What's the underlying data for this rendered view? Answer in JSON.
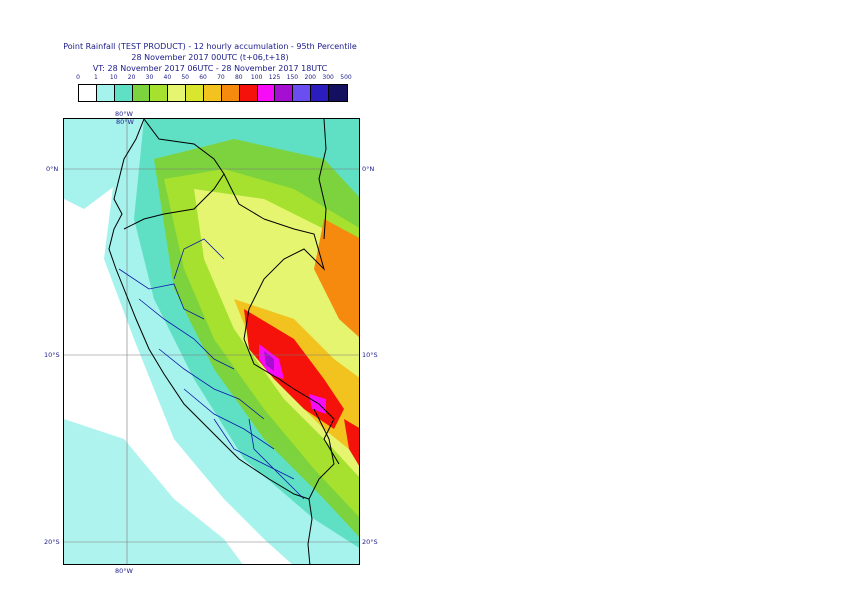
{
  "title": {
    "line1": "Point Rainfall (TEST PRODUCT) - 12 hourly accumulation - 95th Percentile",
    "line2": "28 November 2017 00UTC (t+06,t+18)",
    "line3": "VT: 28 November 2017 06UTC - 28 November 2017 18UTC"
  },
  "legend": {
    "ticks": [
      "0",
      "1",
      "10",
      "20",
      "30",
      "40",
      "50",
      "60",
      "70",
      "80",
      "100",
      "125",
      "150",
      "200",
      "300",
      "500"
    ],
    "colors": [
      "#ffffff",
      "#a6f2ec",
      "#5fe0c5",
      "#7cd33d",
      "#a5e12e",
      "#e6f56f",
      "#d9e62d",
      "#f2c21e",
      "#f58a0f",
      "#f5120a",
      "#f60cf6",
      "#a50fd2",
      "#6b4ef0",
      "#2a1cbd",
      "#140f5e"
    ]
  },
  "map": {
    "lon_labels": {
      "top": "80°W",
      "bottom": "80°W"
    },
    "lat_labels": [
      "0°N",
      "10°S",
      "20°S"
    ],
    "grid": true,
    "coastline_color": "#000000",
    "admin_border_color": "#0a1aa8"
  }
}
